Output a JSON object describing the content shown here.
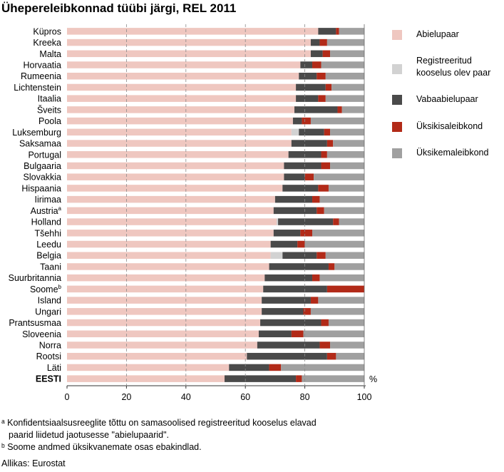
{
  "title": "Ühepereleibkonnad tüübi järgi, REL 2011",
  "chart_data": {
    "type": "bar",
    "orientation": "horizontal",
    "stacked": true,
    "categories": [
      "Küpros",
      "Kreeka",
      "Malta",
      "Horvaatia",
      "Rumeenia",
      "Lichtenstein",
      "Itaalia",
      "Šveits",
      "Poola",
      "Luksemburg",
      "Saksamaa",
      "Portugal",
      "Bulgaaria",
      "Slovakkia",
      "Hispaania",
      "Iirimaa",
      "Austria",
      "Holland",
      "Tšehhi",
      "Leedu",
      "Belgia",
      "Taani",
      "Suurbritannia",
      "Soome",
      "Island",
      "Ungari",
      "Prantsusmaa",
      "Sloveenia",
      "Norra",
      "Rootsi",
      "Läti",
      "EESTI"
    ],
    "category_superscripts": {
      "Austria": "a",
      "Soome": "b"
    },
    "bold_categories": [
      "EESTI"
    ],
    "series": [
      {
        "name": "Abielupaar",
        "color": "#efc7c0",
        "values": [
          84.5,
          82,
          82,
          78.5,
          78,
          77,
          77,
          76.5,
          76,
          75.5,
          75.5,
          74.5,
          73,
          73,
          72.5,
          70,
          69.5,
          70.5,
          69.5,
          68.5,
          68.5,
          68,
          66.5,
          66,
          65.5,
          65.5,
          65,
          64.5,
          64,
          60.5,
          54.5,
          53
        ]
      },
      {
        "name": "Registreeritud kooselus olev paar",
        "color": "#d2d2d2",
        "values": [
          0,
          0,
          0,
          0,
          0,
          0,
          0,
          0,
          0,
          2.5,
          0,
          0,
          0,
          0,
          0,
          0,
          0,
          0.5,
          0,
          0,
          4,
          0,
          0,
          0,
          0,
          0,
          0,
          0,
          0,
          0,
          0,
          0
        ]
      },
      {
        "name": "Vabaabielupaar",
        "color": "#4a4a4a",
        "values": [
          6,
          3,
          4,
          4,
          6,
          10,
          7.5,
          14.5,
          3,
          8.5,
          12,
          11,
          12.5,
          7,
          12,
          12.5,
          14.5,
          18.5,
          9,
          9,
          11.5,
          20,
          16,
          21.5,
          16.5,
          14,
          20.5,
          11,
          21,
          27,
          13.5,
          24
        ]
      },
      {
        "name": "Üksikisaleibkond",
        "color": "#b22a18",
        "values": [
          1,
          2.5,
          2.5,
          3,
          3,
          2,
          2.5,
          1.5,
          3,
          2,
          2,
          2,
          3,
          3,
          3.5,
          2.5,
          2.5,
          2,
          4,
          2.5,
          3,
          2,
          2.5,
          12.5,
          2.5,
          2.5,
          2.5,
          4,
          3.5,
          3,
          4,
          2
        ]
      },
      {
        "name": "Üksikemaleibkond",
        "color": "#a0a0a0",
        "values": [
          8.5,
          12.5,
          11.5,
          14.5,
          13,
          11,
          13,
          7.5,
          18,
          11.5,
          10.5,
          12.5,
          11.5,
          17,
          12,
          15,
          13.5,
          8.5,
          17.5,
          20,
          13,
          10,
          15,
          0,
          15.5,
          18,
          12,
          20.5,
          11.5,
          9.5,
          28,
          21
        ]
      }
    ],
    "x_ticks": [
      0,
      20,
      40,
      60,
      80,
      100
    ],
    "x_tick_labels": [
      "0",
      "20",
      "40",
      "60",
      "80",
      "100"
    ],
    "xlim": [
      0,
      100
    ],
    "x_unit": "%",
    "grid": "vertical dashed",
    "legend_position": "right"
  },
  "legend": [
    {
      "label": "Abielupaar",
      "color": "#efc7c0"
    },
    {
      "label": "Registreeritud kooselus olev paar",
      "color": "#d2d2d2"
    },
    {
      "label": "Vabaabielupaar",
      "color": "#4a4a4a"
    },
    {
      "label": "Üksikisaleibkond",
      "color": "#b22a18"
    },
    {
      "label": "Üksikemaleibkond",
      "color": "#a0a0a0"
    }
  ],
  "notes": {
    "a_line1": "ᵃ Konfidentsiaalsusreeglite tõttu on samasoolised registreeritud kooselus elavad",
    "a_line2": "paarid liidetud jaotusesse \"abielupaarid\".",
    "b_line": "ᵇ Soome andmed üksikvanemate osas ebakindlad."
  },
  "source": "Allikas: Eurostat"
}
